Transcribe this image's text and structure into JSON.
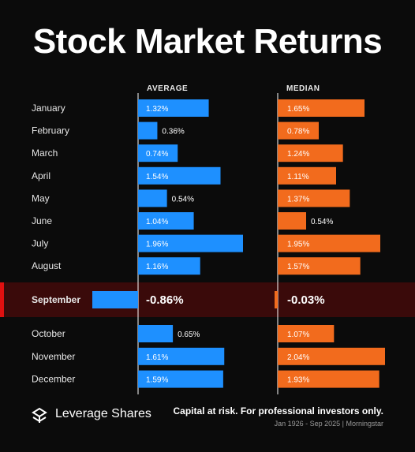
{
  "title": "Stock Market Returns",
  "columns": {
    "average": "AVERAGE",
    "median": "MEDIAN"
  },
  "colors": {
    "background": "#0b0b0b",
    "average_bar": "#1e90ff",
    "median_bar": "#f26b1d",
    "highlight_row": "#3a0a0a",
    "highlight_edge": "#e01010"
  },
  "chart_data": [
    {
      "type": "bar",
      "title": "Stock Market Returns",
      "categories": [
        "January",
        "February",
        "March",
        "April",
        "May",
        "June",
        "July",
        "August",
        "September",
        "October",
        "November",
        "December"
      ],
      "series": [
        {
          "name": "AVERAGE",
          "values": [
            1.32,
            0.36,
            0.74,
            1.54,
            0.54,
            1.04,
            1.96,
            1.16,
            -0.86,
            0.65,
            1.61,
            1.59
          ],
          "labels": [
            "1.32%",
            "0.36%",
            "0.74%",
            "1.54%",
            "0.54%",
            "1.04%",
            "1.96%",
            "1.16%",
            "-0.86%",
            "0.65%",
            "1.61%",
            "1.59%"
          ]
        },
        {
          "name": "MEDIAN",
          "values": [
            1.65,
            0.78,
            1.24,
            1.11,
            1.37,
            0.54,
            1.95,
            1.57,
            -0.03,
            1.07,
            2.04,
            1.93
          ],
          "labels": [
            "1.65%",
            "0.78%",
            "1.24%",
            "1.11%",
            "1.37%",
            "0.54%",
            "1.95%",
            "1.57%",
            "-0.03%",
            "1.07%",
            "2.04%",
            "1.93%"
          ]
        }
      ],
      "highlight": "September",
      "orientation": "horizontal"
    }
  ],
  "footer": {
    "brand": "Leverage Shares",
    "disclaimer": "Capital at risk. For professional investors only.",
    "source": "Jan 1926 - Sep 2025 | Morningstar"
  }
}
